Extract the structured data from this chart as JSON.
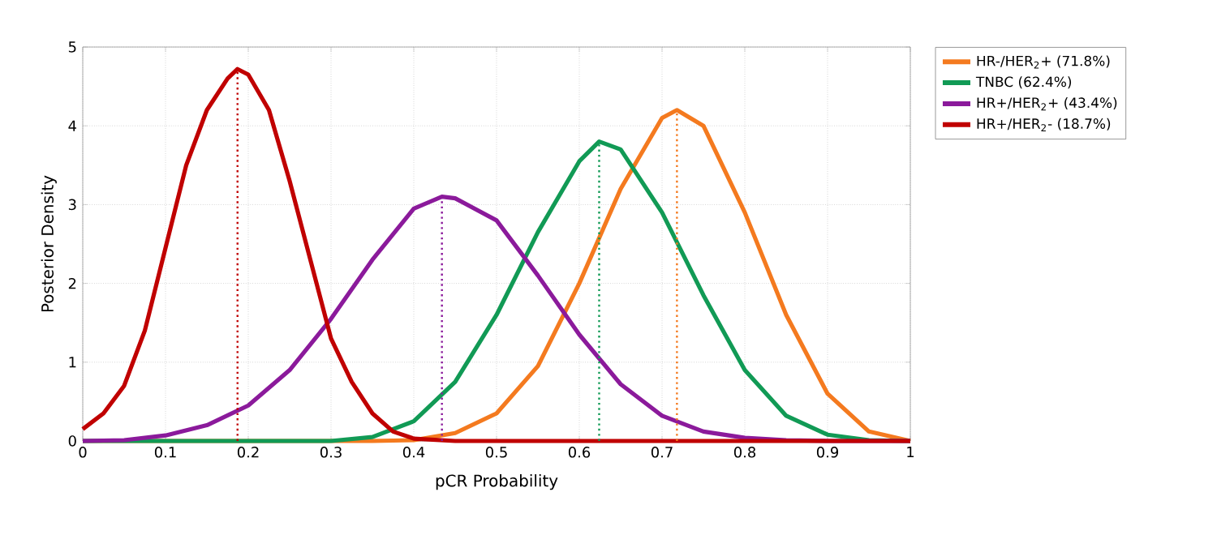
{
  "chart_data": {
    "type": "line",
    "xlabel": "pCR Probability",
    "ylabel": "Posterior Density",
    "xlim": [
      0,
      1
    ],
    "ylim": [
      0,
      5
    ],
    "xticks": [
      0,
      0.1,
      0.2,
      0.3,
      0.4,
      0.5,
      0.6,
      0.7,
      0.8,
      0.9,
      1
    ],
    "yticks": [
      0,
      1,
      2,
      3,
      4,
      5
    ],
    "grid": true,
    "legend": "right",
    "marker": "none",
    "line_style": "solid",
    "series": [
      {
        "name": "HR-/HER$_{2}$+  (71.8%)",
        "color": "#f47a1f",
        "x": [
          0,
          0.35,
          0.4,
          0.45,
          0.5,
          0.55,
          0.6,
          0.65,
          0.7,
          0.718,
          0.75,
          0.8,
          0.85,
          0.9,
          0.95,
          1
        ],
        "values": [
          0,
          0,
          0.01,
          0.1,
          0.35,
          0.95,
          2.0,
          3.2,
          4.1,
          4.2,
          4.0,
          2.9,
          1.6,
          0.6,
          0.12,
          0
        ]
      },
      {
        "name": "TNBC  (62.4%)",
        "color": "#119a55",
        "x": [
          0,
          0.3,
          0.35,
          0.4,
          0.45,
          0.5,
          0.55,
          0.6,
          0.624,
          0.65,
          0.7,
          0.75,
          0.8,
          0.85,
          0.9,
          0.95,
          1
        ],
        "values": [
          0,
          0,
          0.05,
          0.25,
          0.75,
          1.6,
          2.65,
          3.55,
          3.8,
          3.7,
          2.9,
          1.85,
          0.9,
          0.32,
          0.08,
          0.01,
          0
        ]
      },
      {
        "name": "HR+/HER$_{2}$+  (43.4%)",
        "color": "#8b1a9b",
        "x": [
          0,
          0.05,
          0.1,
          0.15,
          0.2,
          0.25,
          0.3,
          0.35,
          0.4,
          0.434,
          0.45,
          0.5,
          0.55,
          0.6,
          0.65,
          0.7,
          0.75,
          0.8,
          0.85,
          0.9,
          1
        ],
        "values": [
          0,
          0.01,
          0.07,
          0.2,
          0.45,
          0.9,
          1.55,
          2.3,
          2.95,
          3.1,
          3.08,
          2.8,
          2.1,
          1.35,
          0.72,
          0.32,
          0.12,
          0.04,
          0.01,
          0,
          0
        ]
      },
      {
        "name": "HR+/HER$_{2}$-  (18.7%)",
        "color": "#c00000",
        "x": [
          0,
          0.025,
          0.05,
          0.075,
          0.1,
          0.125,
          0.15,
          0.175,
          0.187,
          0.2,
          0.225,
          0.25,
          0.275,
          0.3,
          0.325,
          0.35,
          0.375,
          0.4,
          0.45,
          1
        ],
        "values": [
          0.15,
          0.35,
          0.7,
          1.4,
          2.45,
          3.5,
          4.2,
          4.6,
          4.72,
          4.65,
          4.2,
          3.3,
          2.3,
          1.3,
          0.75,
          0.35,
          0.12,
          0.03,
          0,
          0
        ]
      }
    ],
    "ref_lines": [
      {
        "axis": "x",
        "value": 0.718,
        "color": "#f47a1f",
        "line_style": "dotted"
      },
      {
        "axis": "x",
        "value": 0.624,
        "color": "#119a55",
        "line_style": "dotted"
      },
      {
        "axis": "x",
        "value": 0.434,
        "color": "#8b1a9b",
        "line_style": "dotted"
      },
      {
        "axis": "x",
        "value": 0.187,
        "color": "#c00000",
        "line_style": "dotted"
      }
    ]
  }
}
